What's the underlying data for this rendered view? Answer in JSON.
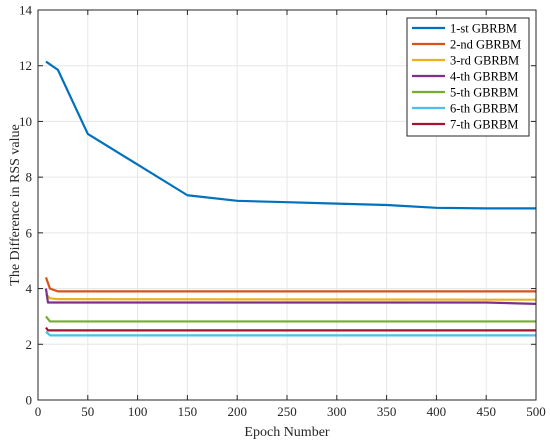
{
  "chart_data": {
    "type": "line",
    "title": "",
    "xlabel": "Epoch Number",
    "ylabel": "The Difference in RSS value",
    "xlim": [
      0,
      500
    ],
    "ylim": [
      0,
      14
    ],
    "xticks": [
      0,
      50,
      100,
      150,
      200,
      250,
      300,
      350,
      400,
      450,
      500
    ],
    "yticks": [
      0,
      2,
      4,
      6,
      8,
      10,
      12,
      14
    ],
    "grid": true,
    "legend_position": "top-right",
    "series": [
      {
        "name": "1-st GBRBM",
        "color": "#0072BD",
        "x": [
          8,
          20,
          50,
          100,
          150,
          200,
          250,
          300,
          350,
          400,
          450,
          500
        ],
        "y": [
          12.15,
          11.85,
          9.55,
          8.45,
          7.35,
          7.15,
          7.1,
          7.05,
          7.0,
          6.9,
          6.88,
          6.88
        ]
      },
      {
        "name": "2-nd GBRBM",
        "color": "#D95319",
        "x": [
          8,
          12,
          20,
          50,
          500
        ],
        "y": [
          4.4,
          4.0,
          3.9,
          3.9,
          3.9
        ]
      },
      {
        "name": "3-rd GBRBM",
        "color": "#EDB120",
        "x": [
          8,
          12,
          20,
          500
        ],
        "y": [
          3.8,
          3.65,
          3.62,
          3.6
        ]
      },
      {
        "name": "4-th GBRBM",
        "color": "#7E2F8E",
        "x": [
          8,
          10,
          450,
          500
        ],
        "y": [
          4.0,
          3.5,
          3.5,
          3.45
        ]
      },
      {
        "name": "5-th GBRBM",
        "color": "#77AC30",
        "x": [
          8,
          12,
          500
        ],
        "y": [
          3.0,
          2.82,
          2.82
        ]
      },
      {
        "name": "6-th GBRBM",
        "color": "#4DBEEE",
        "x": [
          8,
          12,
          500
        ],
        "y": [
          2.45,
          2.32,
          2.32
        ]
      },
      {
        "name": "7-th GBRBM",
        "color": "#A2142F",
        "x": [
          8,
          10,
          500
        ],
        "y": [
          2.6,
          2.5,
          2.5
        ]
      }
    ]
  }
}
